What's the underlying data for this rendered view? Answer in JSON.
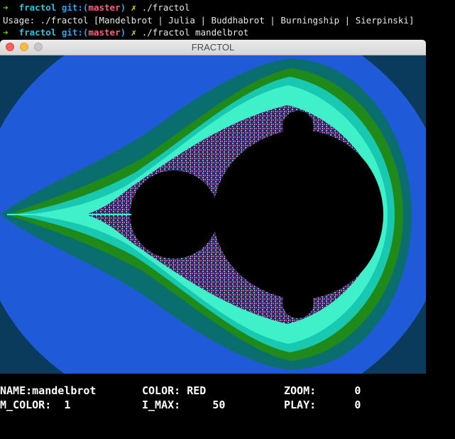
{
  "terminal": {
    "prompt_arrow": "➜",
    "dir": "fractol",
    "git_label": "git:(",
    "branch": "master",
    "git_close": ")",
    "dirty_mark": "✗",
    "line1_cmd": "./fractol",
    "usage": "Usage: ./fractol [Mandelbrot | Julia | Buddhabrot | Burningship | Sierpinski]",
    "line3_cmd": "./fractol mandelbrot"
  },
  "window": {
    "title": "FRACTOL"
  },
  "info": {
    "name_label": "NAME:",
    "name_value": "mandelbrot",
    "color_label": "COLOR:",
    "color_value": "RED",
    "zoom_label": "ZOOM:",
    "zoom_value": "0",
    "m_color_label": "M_COLOR:",
    "m_color_value": "1",
    "i_max_label": "I_MAX:",
    "i_max_value": "50",
    "play_label": "PLAY:",
    "play_value": "0"
  },
  "colors": {
    "band_outer": "#0a3a5c",
    "band_blue": "#1f5bd8",
    "band_teal": "#0b6e6e",
    "band_green": "#1f8a1a",
    "band_cyan": "#18c8b0",
    "band_aqua": "#40f0c8",
    "set_interior": "#000000"
  }
}
